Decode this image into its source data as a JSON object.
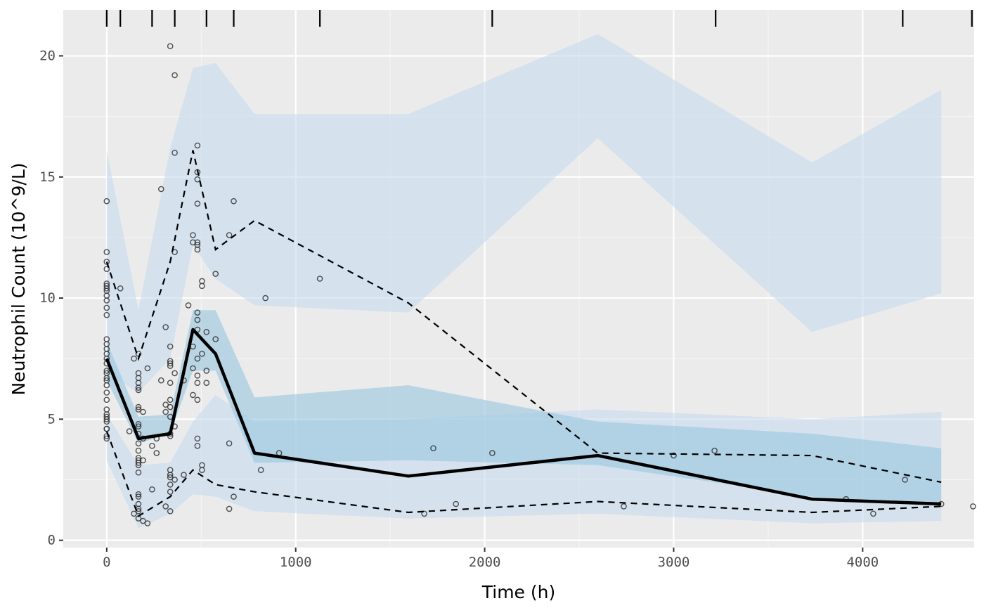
{
  "chart_data": {
    "type": "line",
    "title": "",
    "xlabel": "Time (h)",
    "ylabel": "Neutrophil Count (10^9/L)",
    "xlim": [
      -230,
      4590
    ],
    "ylim": [
      -0.3,
      21.9
    ],
    "x_ticks": [
      0,
      1000,
      2000,
      3000,
      4000
    ],
    "y_ticks": [
      0,
      5,
      10,
      15,
      20
    ],
    "x_tick_labels": [
      "0",
      "1000",
      "2000",
      "3000",
      "4000"
    ],
    "y_tick_labels": [
      "0",
      "5",
      "10",
      "15",
      "20"
    ],
    "grid": true,
    "legend": "none",
    "colors": {
      "panel": "#ebebeb",
      "grid_major": "#ffffff",
      "band_outer": "#c6dbef",
      "band_median": "#9ecae1",
      "line": "#000000"
    },
    "bin_times": [
      0,
      168,
      336,
      456,
      576,
      782,
      1596,
      2598,
      3732,
      4416
    ],
    "bin_edges_rug": [
      0,
      72,
      240,
      360,
      528,
      672,
      1128,
      2040,
      3222,
      4212,
      4578
    ],
    "observed": {
      "p50": [
        7.5,
        4.2,
        4.4,
        8.7,
        7.7,
        3.6,
        2.65,
        3.5,
        1.7,
        1.5
      ],
      "p95": [
        11.5,
        7.5,
        11.5,
        16.1,
        12.0,
        13.2,
        9.8,
        3.6,
        3.5,
        2.4
      ],
      "p05": [
        4.5,
        1.0,
        1.8,
        2.9,
        2.3,
        2.0,
        1.15,
        1.6,
        1.15,
        1.4
      ]
    },
    "ci_bands": {
      "p95": {
        "lower": [
          6.9,
          6.1,
          7.5,
          12.2,
          10.8,
          9.7,
          9.4,
          16.6,
          8.6,
          10.2
        ],
        "upper": [
          16.1,
          9.5,
          16.2,
          19.5,
          19.7,
          17.6,
          17.6,
          20.9,
          15.6,
          18.6
        ]
      },
      "p50": {
        "lower": [
          6.6,
          4.0,
          4.4,
          7.0,
          7.0,
          3.2,
          3.3,
          3.1,
          1.8,
          1.5
        ],
        "upper": [
          8.2,
          5.1,
          5.2,
          9.5,
          9.5,
          5.9,
          6.4,
          4.9,
          4.4,
          3.8
        ]
      },
      "p05": {
        "lower": [
          3.3,
          0.5,
          1.1,
          1.9,
          1.8,
          1.2,
          0.9,
          1.1,
          0.7,
          0.8
        ],
        "upper": [
          5.2,
          3.1,
          3.2,
          4.9,
          6.0,
          4.9,
          5.0,
          5.4,
          5.0,
          5.3
        ]
      }
    },
    "points": [
      [
        0,
        14.0
      ],
      [
        0,
        11.9
      ],
      [
        0,
        11.5
      ],
      [
        0,
        11.2
      ],
      [
        0,
        10.6
      ],
      [
        0,
        10.5
      ],
      [
        0,
        10.4
      ],
      [
        0,
        10.3
      ],
      [
        0,
        10.1
      ],
      [
        0,
        9.9
      ],
      [
        0,
        9.6
      ],
      [
        0,
        9.3
      ],
      [
        0,
        8.3
      ],
      [
        0,
        8.1
      ],
      [
        0,
        7.9
      ],
      [
        0,
        7.7
      ],
      [
        0,
        7.5
      ],
      [
        0,
        7.3
      ],
      [
        0,
        7.0
      ],
      [
        0,
        6.9
      ],
      [
        0,
        6.7
      ],
      [
        0,
        6.6
      ],
      [
        0,
        6.4
      ],
      [
        0,
        6.1
      ],
      [
        0,
        5.8
      ],
      [
        0,
        5.4
      ],
      [
        0,
        5.2
      ],
      [
        0,
        5.1
      ],
      [
        0,
        5.0
      ],
      [
        0,
        4.9
      ],
      [
        0,
        4.6
      ],
      [
        0,
        4.6
      ],
      [
        0,
        4.3
      ],
      [
        0,
        4.2
      ],
      [
        72,
        10.4
      ],
      [
        120,
        4.5
      ],
      [
        144,
        7.5
      ],
      [
        144,
        1.1
      ],
      [
        168,
        7.7
      ],
      [
        168,
        6.9
      ],
      [
        168,
        6.7
      ],
      [
        168,
        6.5
      ],
      [
        168,
        6.3
      ],
      [
        168,
        6.2
      ],
      [
        168,
        5.5
      ],
      [
        168,
        5.4
      ],
      [
        168,
        4.8
      ],
      [
        168,
        4.7
      ],
      [
        168,
        4.4
      ],
      [
        168,
        4.0
      ],
      [
        168,
        3.7
      ],
      [
        168,
        3.4
      ],
      [
        168,
        3.3
      ],
      [
        168,
        3.2
      ],
      [
        168,
        3.1
      ],
      [
        168,
        2.8
      ],
      [
        168,
        1.9
      ],
      [
        168,
        1.8
      ],
      [
        168,
        1.5
      ],
      [
        168,
        1.3
      ],
      [
        168,
        1.2
      ],
      [
        168,
        0.9
      ],
      [
        192,
        5.3
      ],
      [
        192,
        4.2
      ],
      [
        192,
        3.3
      ],
      [
        192,
        0.8
      ],
      [
        216,
        7.1
      ],
      [
        216,
        0.7
      ],
      [
        240,
        3.9
      ],
      [
        240,
        2.1
      ],
      [
        264,
        4.2
      ],
      [
        264,
        3.6
      ],
      [
        288,
        14.5
      ],
      [
        288,
        6.6
      ],
      [
        312,
        8.8
      ],
      [
        312,
        5.6
      ],
      [
        312,
        5.3
      ],
      [
        312,
        1.4
      ],
      [
        336,
        20.4
      ],
      [
        336,
        8.0
      ],
      [
        336,
        7.4
      ],
      [
        336,
        7.3
      ],
      [
        336,
        7.2
      ],
      [
        336,
        6.5
      ],
      [
        336,
        5.8
      ],
      [
        336,
        5.5
      ],
      [
        336,
        5.1
      ],
      [
        336,
        4.4
      ],
      [
        336,
        4.3
      ],
      [
        336,
        2.9
      ],
      [
        336,
        2.7
      ],
      [
        336,
        2.6
      ],
      [
        336,
        2.3
      ],
      [
        336,
        2.0
      ],
      [
        336,
        1.2
      ],
      [
        360,
        19.2
      ],
      [
        360,
        16.0
      ],
      [
        360,
        11.9
      ],
      [
        360,
        6.9
      ],
      [
        360,
        4.7
      ],
      [
        360,
        2.5
      ],
      [
        408,
        6.6
      ],
      [
        408,
        2.7
      ],
      [
        432,
        9.7
      ],
      [
        456,
        12.6
      ],
      [
        456,
        12.3
      ],
      [
        456,
        8.0
      ],
      [
        456,
        7.1
      ],
      [
        456,
        6.0
      ],
      [
        480,
        16.3
      ],
      [
        480,
        15.2
      ],
      [
        480,
        14.9
      ],
      [
        480,
        13.9
      ],
      [
        480,
        12.3
      ],
      [
        480,
        12.2
      ],
      [
        480,
        12.0
      ],
      [
        480,
        9.4
      ],
      [
        480,
        9.1
      ],
      [
        480,
        8.7
      ],
      [
        480,
        7.5
      ],
      [
        480,
        6.8
      ],
      [
        480,
        6.5
      ],
      [
        480,
        5.8
      ],
      [
        480,
        4.2
      ],
      [
        480,
        3.9
      ],
      [
        504,
        10.7
      ],
      [
        504,
        10.5
      ],
      [
        504,
        7.7
      ],
      [
        504,
        3.1
      ],
      [
        504,
        2.9
      ],
      [
        528,
        8.6
      ],
      [
        528,
        7.0
      ],
      [
        528,
        6.5
      ],
      [
        576,
        11.0
      ],
      [
        576,
        8.3
      ],
      [
        648,
        12.6
      ],
      [
        648,
        4.0
      ],
      [
        648,
        1.3
      ],
      [
        672,
        14.0
      ],
      [
        672,
        1.8
      ],
      [
        816,
        2.9
      ],
      [
        840,
        10.0
      ],
      [
        912,
        3.6
      ],
      [
        1128,
        10.8
      ],
      [
        1680,
        1.1
      ],
      [
        1728,
        3.8
      ],
      [
        1848,
        1.5
      ],
      [
        2040,
        3.6
      ],
      [
        2736,
        1.4
      ],
      [
        3000,
        3.5
      ],
      [
        3216,
        3.7
      ],
      [
        3912,
        1.7
      ],
      [
        4056,
        1.1
      ],
      [
        4224,
        2.5
      ],
      [
        4416,
        1.5
      ],
      [
        4584,
        1.4
      ]
    ]
  }
}
